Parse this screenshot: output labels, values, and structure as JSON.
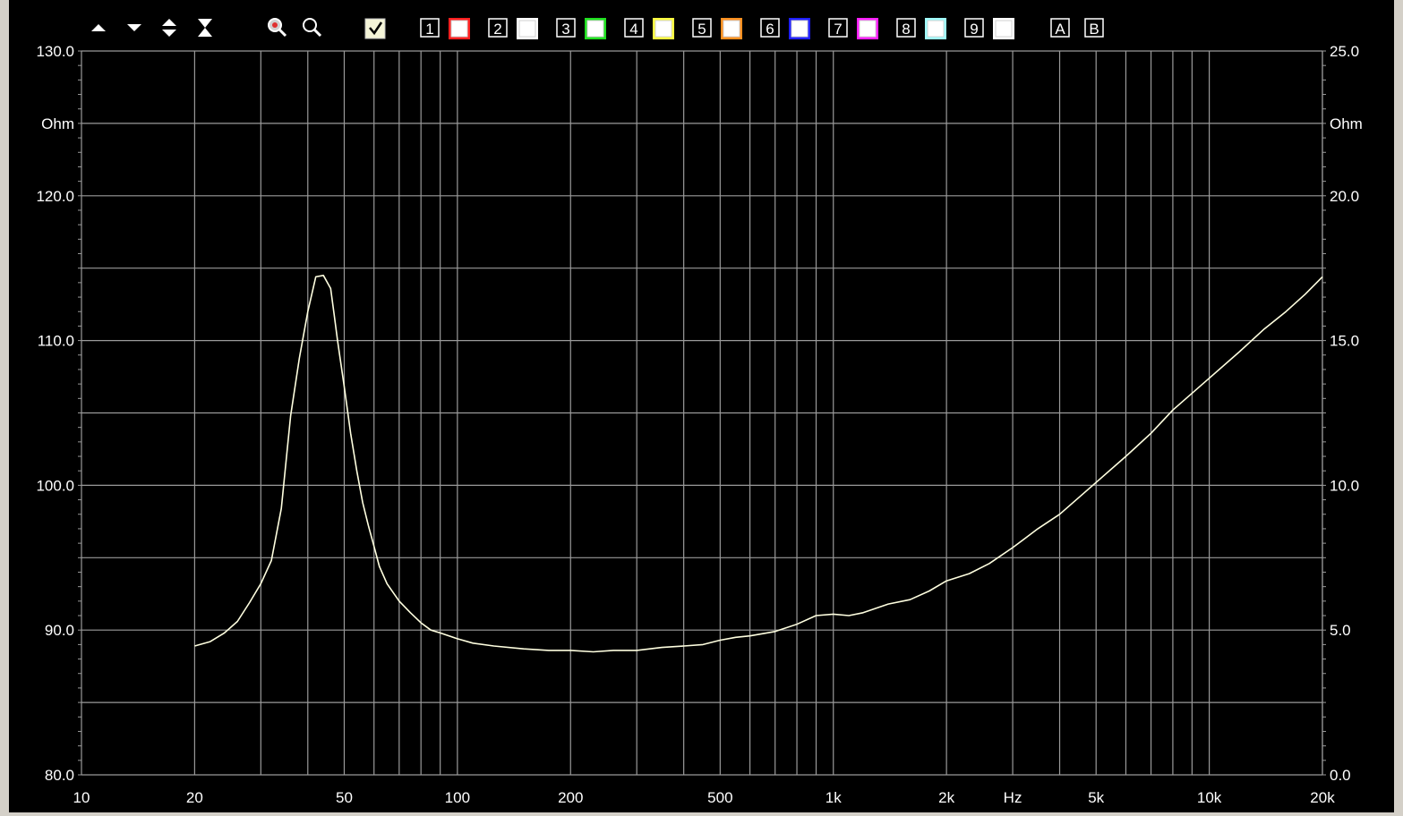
{
  "toolbar": {
    "buttons": [
      "move-up",
      "move-down",
      "expand-vertical",
      "compress-vertical",
      "zoom-in",
      "zoom-out"
    ],
    "master_check": true,
    "channels": [
      {
        "label": "1",
        "color": "#ff2020"
      },
      {
        "label": "2",
        "color": "#ffffff"
      },
      {
        "label": "3",
        "color": "#20e020"
      },
      {
        "label": "4",
        "color": "#ffff40"
      },
      {
        "label": "5",
        "color": "#ff9020"
      },
      {
        "label": "6",
        "color": "#2020ff"
      },
      {
        "label": "7",
        "color": "#ff20ff"
      },
      {
        "label": "8",
        "color": "#a0ffff"
      },
      {
        "label": "9",
        "color": "#ffffff"
      }
    ],
    "cursors": [
      "A",
      "B"
    ]
  },
  "chart_data": {
    "type": "line",
    "x_scale": "log",
    "xlim": [
      10,
      20000
    ],
    "x_ticks": [
      {
        "v": 10,
        "label": "10"
      },
      {
        "v": 20,
        "label": "20"
      },
      {
        "v": 50,
        "label": "50"
      },
      {
        "v": 100,
        "label": "100"
      },
      {
        "v": 200,
        "label": "200"
      },
      {
        "v": 500,
        "label": "500"
      },
      {
        "v": 1000,
        "label": "1k"
      },
      {
        "v": 2000,
        "label": "2k"
      },
      {
        "v": 5000,
        "label": "5k"
      },
      {
        "v": 10000,
        "label": "10k"
      },
      {
        "v": 20000,
        "label": "20k"
      }
    ],
    "x_unit": "Hz",
    "y_left": {
      "lim": [
        80,
        130
      ],
      "ticks": [
        {
          "v": 80,
          "label": "80.0"
        },
        {
          "v": 90,
          "label": "90.0"
        },
        {
          "v": 100,
          "label": "100.0"
        },
        {
          "v": 110,
          "label": "110.0"
        },
        {
          "v": 120,
          "label": "120.0"
        },
        {
          "v": 130,
          "label": "130.0"
        }
      ],
      "unit": "Ohm"
    },
    "y_right": {
      "lim": [
        0,
        25
      ],
      "ticks": [
        {
          "v": 0,
          "label": "0.0"
        },
        {
          "v": 5,
          "label": "5.0"
        },
        {
          "v": 10,
          "label": "10.0"
        },
        {
          "v": 15,
          "label": "15.0"
        },
        {
          "v": 20,
          "label": "20.0"
        },
        {
          "v": 25,
          "label": "25.0"
        }
      ],
      "unit": "Ohm"
    },
    "grid": true,
    "series": [
      {
        "axis": "right",
        "color": "#ffffe0",
        "x": [
          20,
          22,
          24,
          26,
          28,
          30,
          32,
          34,
          36,
          38,
          40,
          42,
          44,
          46,
          47,
          48,
          50,
          52,
          54,
          56,
          58,
          60,
          62,
          65,
          70,
          75,
          80,
          85,
          90,
          100,
          110,
          125,
          150,
          175,
          200,
          230,
          260,
          300,
          350,
          400,
          450,
          500,
          550,
          600,
          700,
          800,
          900,
          1000,
          1100,
          1200,
          1400,
          1600,
          1800,
          2000,
          2300,
          2600,
          3000,
          3500,
          4000,
          5000,
          6000,
          7000,
          8000,
          10000,
          12000,
          14000,
          16000,
          18000,
          20000
        ],
        "values": [
          4.45,
          4.6,
          4.9,
          5.3,
          5.95,
          6.6,
          7.4,
          9.2,
          12.4,
          14.4,
          16.0,
          17.2,
          17.25,
          16.8,
          15.9,
          15.0,
          13.4,
          11.8,
          10.5,
          9.4,
          8.6,
          7.9,
          7.2,
          6.6,
          6.0,
          5.6,
          5.25,
          5.0,
          4.9,
          4.7,
          4.55,
          4.45,
          4.35,
          4.3,
          4.3,
          4.25,
          4.3,
          4.3,
          4.4,
          4.45,
          4.5,
          4.65,
          4.75,
          4.8,
          4.95,
          5.2,
          5.5,
          5.55,
          5.5,
          5.6,
          5.9,
          6.05,
          6.35,
          6.7,
          6.95,
          7.3,
          7.85,
          8.5,
          9.0,
          10.1,
          11.0,
          11.8,
          12.6,
          13.7,
          14.6,
          15.4,
          16.0,
          16.6,
          17.2
        ]
      }
    ]
  }
}
